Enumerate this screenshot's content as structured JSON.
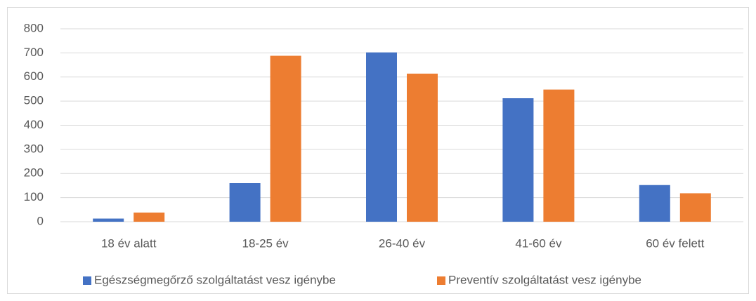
{
  "chart_data": {
    "type": "bar",
    "categories": [
      "18 év alatt",
      "18-25 év",
      "26-40 év",
      "41-60 év",
      "60 év felett"
    ],
    "series": [
      {
        "name": "Egészségmegőrző szolgáltatást vesz igénybe",
        "color": "#4472c4",
        "values": [
          13,
          160,
          702,
          512,
          152
        ]
      },
      {
        "name": "Preventív szolgáltatást vesz igénybe",
        "color": "#ed7d31",
        "values": [
          38,
          688,
          614,
          548,
          118
        ]
      }
    ],
    "ylim": [
      0,
      800
    ],
    "yticks": [
      0,
      100,
      200,
      300,
      400,
      500,
      600,
      700,
      800
    ],
    "grid": true,
    "legend": "bottom"
  }
}
